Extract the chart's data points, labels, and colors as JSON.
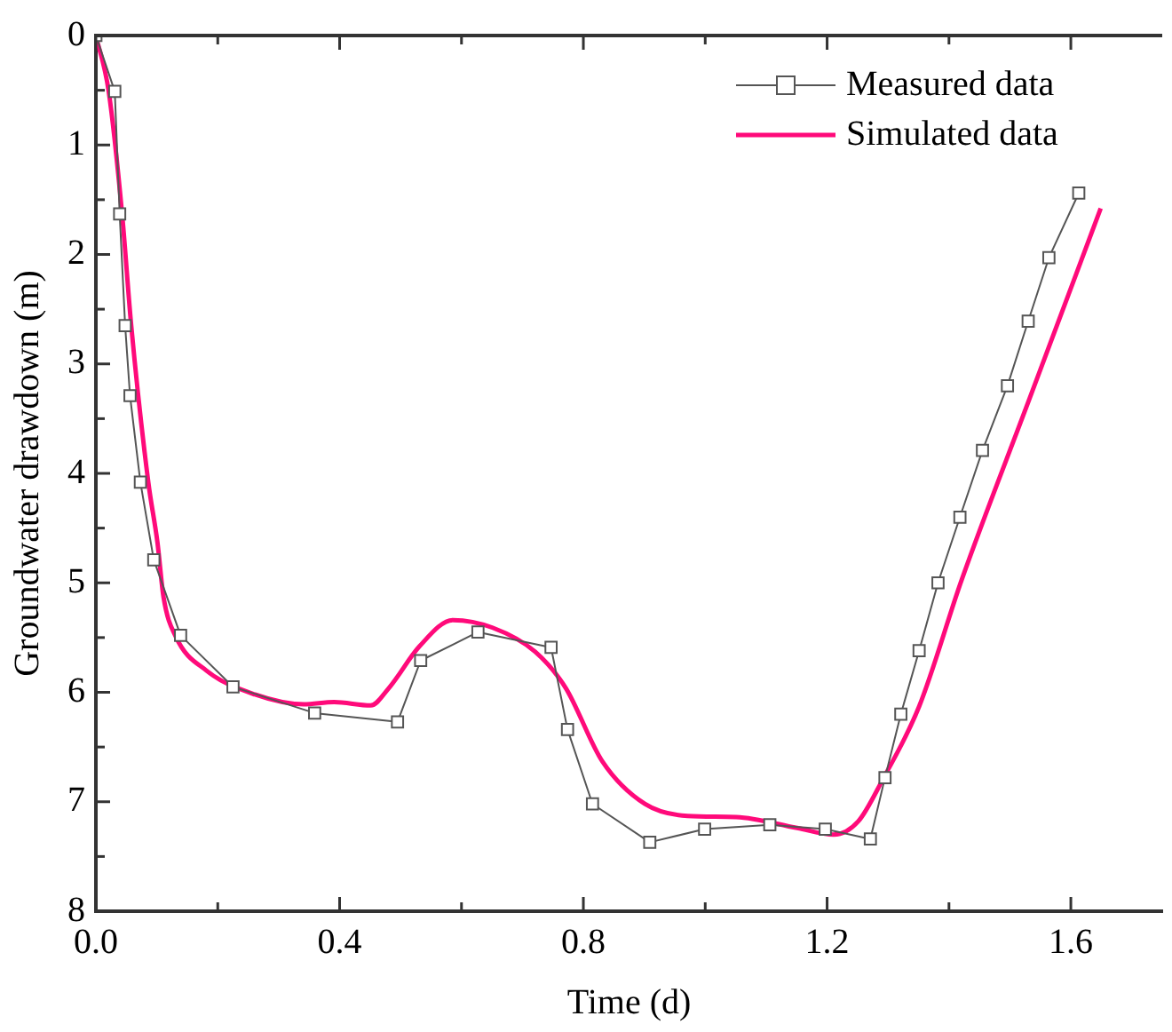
{
  "chart_data": {
    "type": "line",
    "xlabel": "Time (d)",
    "ylabel": "Groundwater drawdown (m)",
    "xlim": [
      0,
      1.75
    ],
    "xticks": [
      {
        "value": 0,
        "label": "0.0"
      },
      {
        "value": 0.2,
        "label": null
      },
      0.4,
      {
        "value": 0.6,
        "label": null
      },
      0.8,
      {
        "value": 1.0,
        "label": null
      },
      1.2,
      {
        "value": 1.4,
        "label": null
      },
      1.6
    ],
    "ylim": [
      8,
      0
    ],
    "yticks": [
      0,
      {
        "value": 0.5,
        "label": null
      },
      1,
      {
        "value": 1.5,
        "label": null
      },
      2,
      {
        "value": 2.5,
        "label": null
      },
      3,
      {
        "value": 3.5,
        "label": null
      },
      4,
      {
        "value": 4.5,
        "label": null
      },
      5,
      {
        "value": 5.5,
        "label": null
      },
      6,
      {
        "value": 6.5,
        "label": null
      },
      7,
      {
        "value": 7.5,
        "label": null
      },
      8
    ],
    "grid": false,
    "legend": "top right",
    "series": [
      {
        "name": "Measured data",
        "color": "#555555",
        "marker": "square",
        "x": [
          0,
          0.031,
          0.039,
          0.048,
          0.056,
          0.073,
          0.095,
          0.139,
          0.225,
          0.359,
          0.495,
          0.533,
          0.627,
          0.747,
          0.774,
          0.815,
          0.909,
          0.999,
          1.106,
          1.197,
          1.271,
          1.295,
          1.321,
          1.351,
          1.382,
          1.418,
          1.455,
          1.496,
          1.53,
          1.564,
          1.613
        ],
        "values": [
          0,
          0.51,
          1.63,
          2.65,
          3.29,
          4.08,
          4.79,
          5.48,
          5.95,
          6.19,
          6.27,
          5.71,
          5.45,
          5.59,
          6.34,
          7.02,
          7.37,
          7.25,
          7.21,
          7.25,
          7.34,
          6.78,
          6.2,
          5.62,
          5.0,
          4.4,
          3.79,
          3.2,
          2.61,
          2.03,
          1.44
        ]
      },
      {
        "name": "Simulated data",
        "color": "#ff0a7a",
        "marker": "none",
        "x": [
          0,
          0.021,
          0.043,
          0.058,
          0.086,
          0.101,
          0.111,
          0.131,
          0.181,
          0.261,
          0.341,
          0.391,
          0.451,
          0.481,
          0.531,
          0.586,
          0.651,
          0.721,
          0.771,
          0.831,
          0.901,
          0.971,
          1.051,
          1.151,
          1.211,
          1.251,
          1.291,
          1.351,
          1.421,
          1.53,
          1.649
        ],
        "values": [
          0,
          0.51,
          1.63,
          2.65,
          4.08,
          4.63,
          5.13,
          5.49,
          5.8,
          6.02,
          6.11,
          6.09,
          6.12,
          5.96,
          5.58,
          5.34,
          5.41,
          5.63,
          5.96,
          6.63,
          7.02,
          7.13,
          7.14,
          7.24,
          7.3,
          7.18,
          6.8,
          6.13,
          4.97,
          3.35,
          1.58
        ]
      }
    ]
  }
}
